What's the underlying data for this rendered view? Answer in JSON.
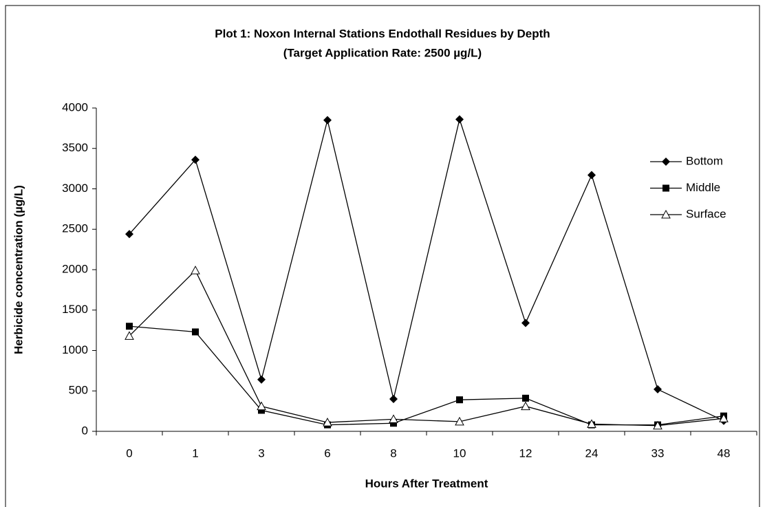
{
  "chart_data": {
    "type": "line",
    "title": "Plot 1: Noxon Internal Stations Endothall Residues by Depth",
    "subtitle": "(Target Application Rate: 2500 µg/L)",
    "x_label": "Hours After Treatment",
    "y_label": "Herbicide concentration (µg/L)",
    "categories": [
      "0",
      "1",
      "3",
      "6",
      "8",
      "10",
      "12",
      "24",
      "33",
      "48"
    ],
    "series": [
      {
        "name": "Bottom",
        "color": "#000000",
        "marker": "diamond",
        "values": [
          2440,
          3360,
          640,
          3850,
          400,
          3860,
          1340,
          3170,
          520,
          130
        ]
      },
      {
        "name": "Middle",
        "color": "#000000",
        "marker": "square",
        "values": [
          1300,
          1230,
          260,
          80,
          100,
          390,
          410,
          80,
          80,
          190
        ]
      },
      {
        "name": "Surface",
        "color": "#000000",
        "marker": "triangle-open",
        "values": [
          1180,
          1990,
          310,
          110,
          150,
          120,
          310,
          90,
          70,
          160
        ]
      }
    ],
    "ylim": [
      0,
      4000
    ],
    "yticks": [
      0,
      500,
      1000,
      1500,
      2000,
      2500,
      3000,
      3500,
      4000
    ],
    "grid": false,
    "legend": "right"
  }
}
